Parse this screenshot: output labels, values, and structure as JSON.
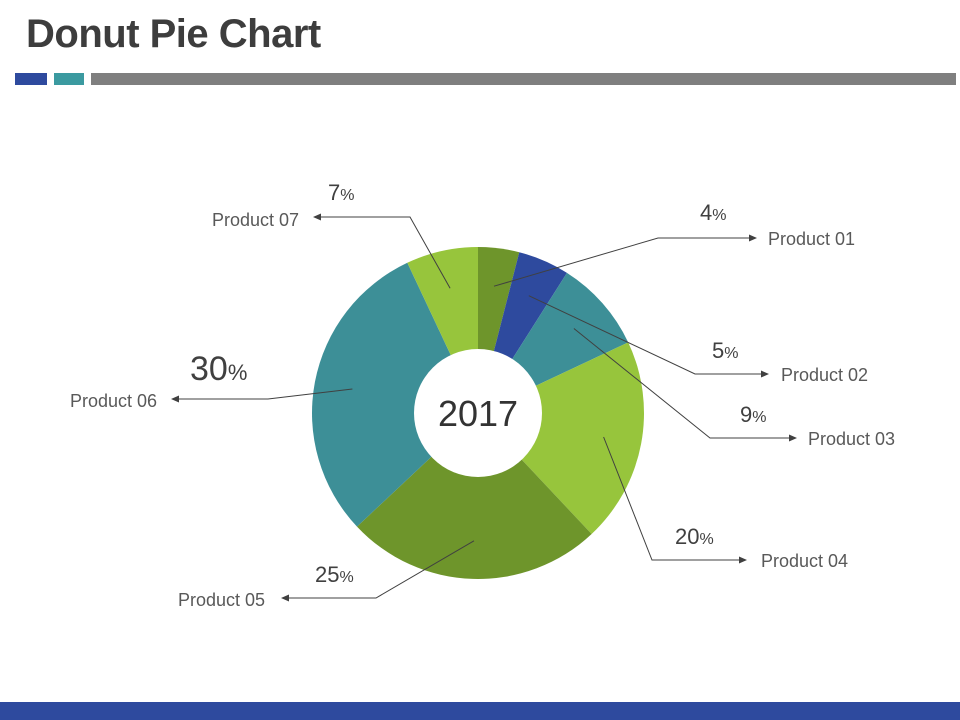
{
  "title": "Donut Pie Chart",
  "colors": {
    "accent_blue": "#2e4a9e",
    "accent_teal": "#3b9aa0",
    "divider_gray": "#7f7f7f",
    "footer": "#2e4a9e"
  },
  "chart_data": {
    "type": "pie",
    "variant": "donut",
    "center_label": "2017",
    "unit_symbol": "%",
    "slices": [
      {
        "label": "Product 01",
        "value": 4,
        "color": "#6e952b"
      },
      {
        "label": "Product 02",
        "value": 5,
        "color": "#2e4a9e"
      },
      {
        "label": "Product 03",
        "value": 9,
        "color": "#3d8f97"
      },
      {
        "label": "Product 04",
        "value": 20,
        "color": "#97c53c"
      },
      {
        "label": "Product 05",
        "value": 25,
        "color": "#6e952b"
      },
      {
        "label": "Product 06",
        "value": 30,
        "color": "#3d8f97"
      },
      {
        "label": "Product 07",
        "value": 7,
        "color": "#97c53c"
      }
    ]
  }
}
